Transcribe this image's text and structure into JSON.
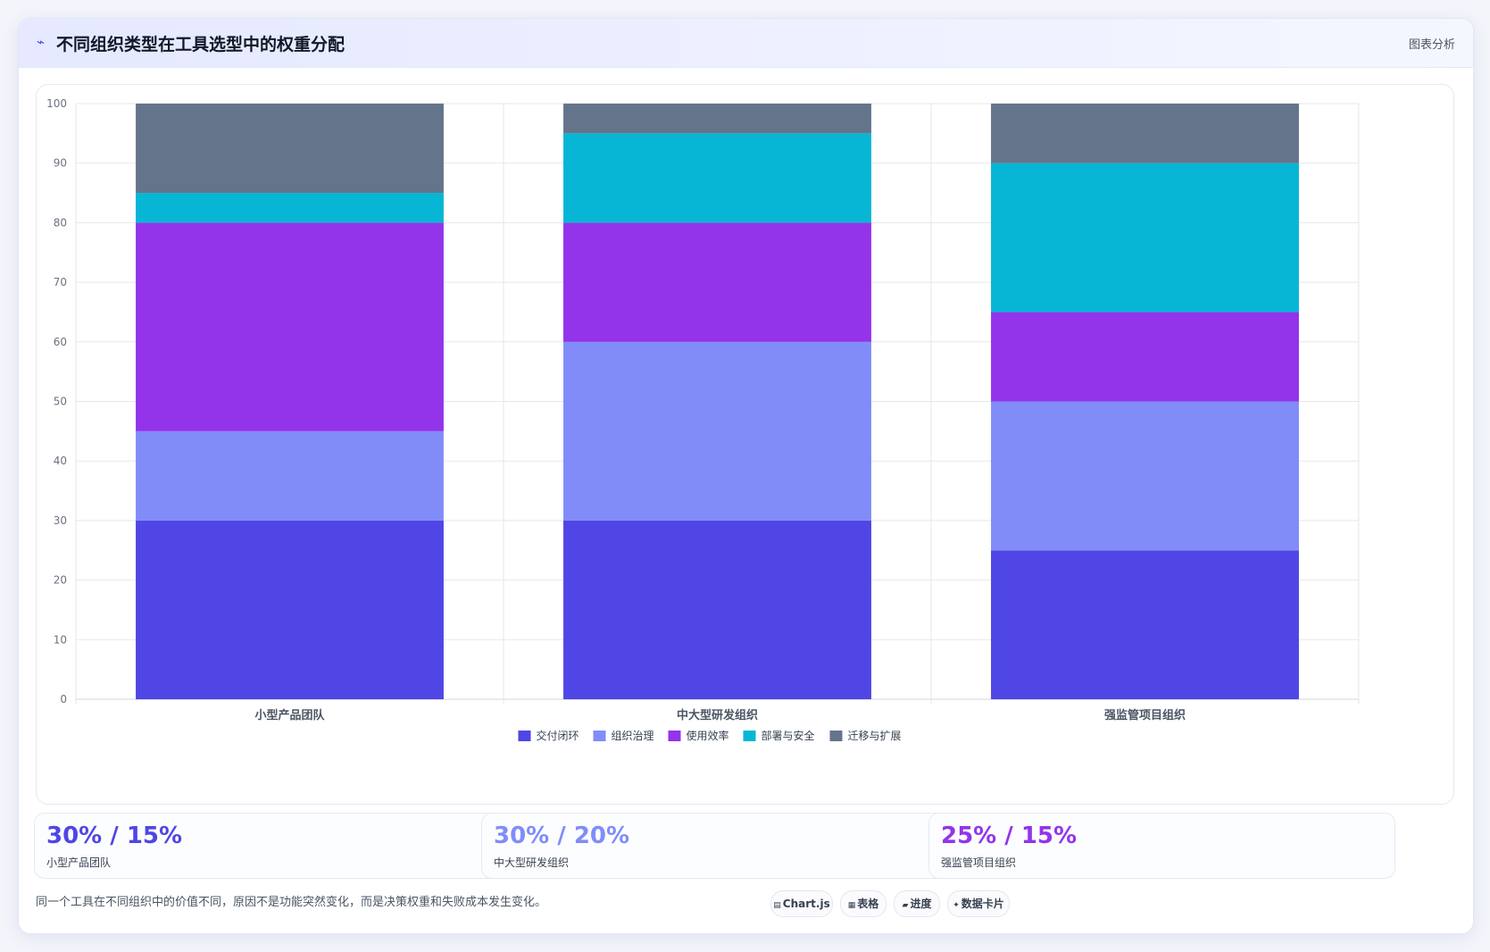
{
  "header": {
    "icon": "pulse-icon",
    "title": "不同组织类型在工具选型中的权重分配",
    "tag": "图表分析"
  },
  "chart_data": {
    "type": "bar",
    "stacked": true,
    "title": "",
    "xlabel": "",
    "ylabel": "",
    "ylim": [
      0,
      100
    ],
    "yticks": [
      0,
      10,
      20,
      30,
      40,
      50,
      60,
      70,
      80,
      90,
      100
    ],
    "grid": true,
    "legend_position": "bottom",
    "categories": [
      "小型产品团队",
      "中大型研发组织",
      "强监管项目组织"
    ],
    "series": [
      {
        "name": "交付闭环",
        "color": "#4f46e5",
        "values": [
          30,
          30,
          25
        ]
      },
      {
        "name": "组织治理",
        "color": "#818cf8",
        "values": [
          15,
          30,
          25
        ]
      },
      {
        "name": "使用效率",
        "color": "#9333ea",
        "values": [
          35,
          20,
          15
        ]
      },
      {
        "name": "部署与安全",
        "color": "#06b6d4",
        "values": [
          5,
          15,
          25
        ]
      },
      {
        "name": "迁移与扩展",
        "color": "#64748b",
        "values": [
          15,
          5,
          10
        ]
      }
    ]
  },
  "stats": [
    {
      "value": "30% / 15%",
      "label": "小型产品团队",
      "color": "#4f46e5"
    },
    {
      "value": "30% / 20%",
      "label": "中大型研发组织",
      "color": "#818cf8"
    },
    {
      "value": "25% / 15%",
      "label": "强监管项目组织",
      "color": "#9333ea"
    }
  ],
  "footer": {
    "note": "同一个工具在不同组织中的价值不同，原因不是功能突然变化，而是决策权重和失败成本发生变化。",
    "pills": [
      {
        "icon": "▤",
        "label": "Chart.js"
      },
      {
        "icon": "▦",
        "label": "表格"
      },
      {
        "icon": "▰",
        "label": "进度"
      },
      {
        "icon": "✦",
        "label": "数据卡片"
      }
    ]
  }
}
